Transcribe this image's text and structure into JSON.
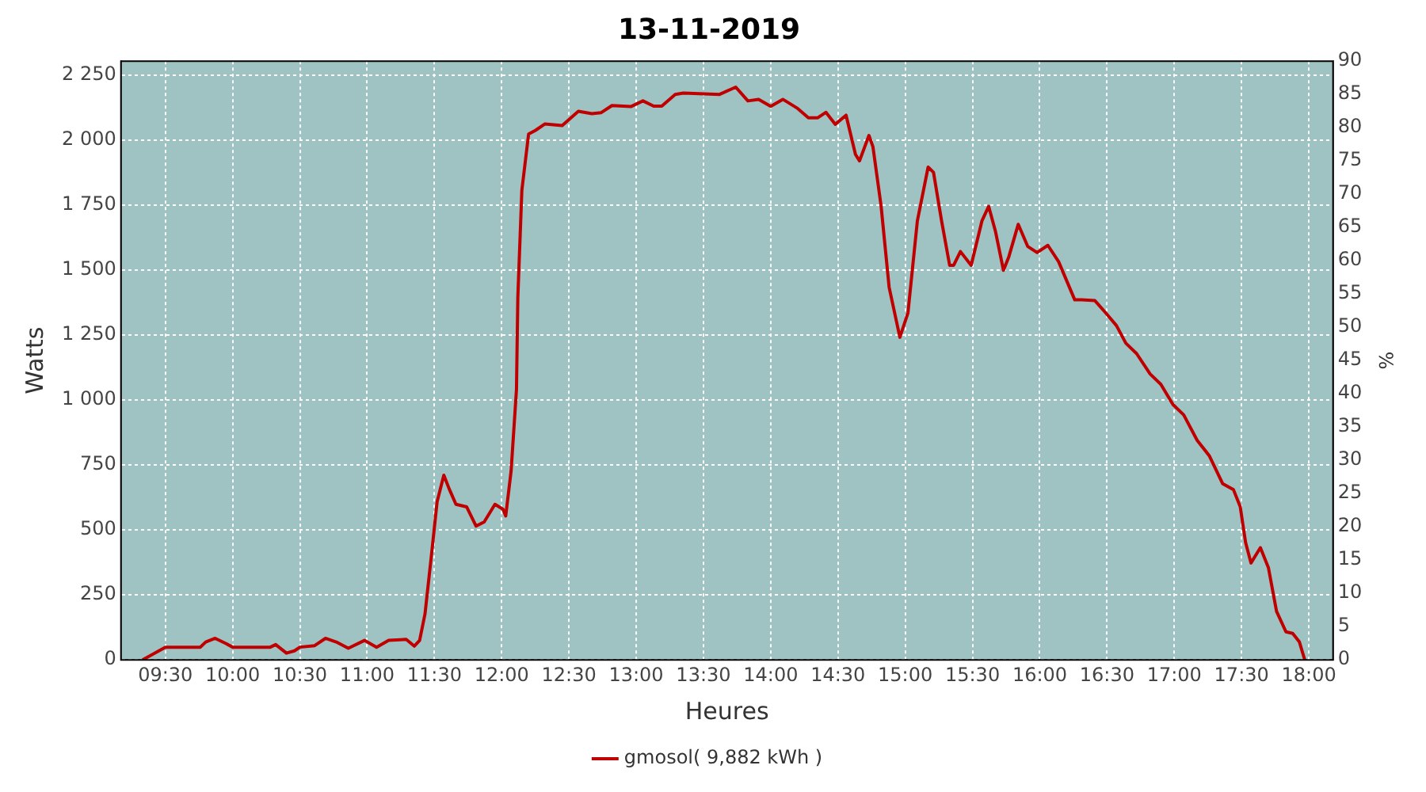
{
  "chart_data": {
    "type": "line",
    "title": "13-11-2019",
    "xlabel": "Heures",
    "ylabel": "Watts",
    "y2label": "%",
    "x": [
      9.33,
      9.5,
      9.76,
      9.8,
      9.87,
      9.95,
      10.0,
      10.28,
      10.32,
      10.4,
      10.46,
      10.5,
      10.61,
      10.69,
      10.77,
      10.86,
      10.98,
      11.07,
      11.16,
      11.29,
      11.35,
      11.39,
      11.43,
      11.48,
      11.52,
      11.57,
      11.61,
      11.66,
      11.74,
      11.81,
      11.87,
      11.95,
      12.01,
      12.03,
      12.07,
      12.11,
      12.12,
      12.15,
      12.2,
      12.25,
      12.32,
      12.45,
      12.57,
      12.67,
      12.74,
      12.82,
      12.96,
      13.05,
      13.13,
      13.19,
      13.29,
      13.35,
      13.62,
      13.74,
      13.83,
      13.91,
      14.0,
      14.09,
      14.2,
      14.28,
      14.35,
      14.41,
      14.48,
      14.56,
      14.63,
      14.66,
      14.73,
      14.76,
      14.82,
      14.88,
      14.96,
      15.02,
      15.09,
      15.17,
      15.21,
      15.27,
      15.33,
      15.36,
      15.41,
      15.49,
      15.57,
      15.62,
      15.67,
      15.73,
      15.77,
      15.84,
      15.91,
      15.98,
      16.06,
      16.14,
      16.26,
      16.31,
      16.41,
      16.49,
      16.57,
      16.64,
      16.72,
      16.82,
      16.9,
      16.99,
      17.07,
      17.17,
      17.26,
      17.36,
      17.44,
      17.49,
      17.53,
      17.57,
      17.64,
      17.7,
      17.76,
      17.83,
      17.88,
      17.93,
      17.97
    ],
    "series": [
      {
        "name": "gmosol( 9,882 kWh )",
        "color": "#c00000",
        "values": [
          0,
          49,
          49,
          69,
          83,
          63,
          49,
          49,
          59,
          26,
          35,
          49,
          55,
          83,
          69,
          45,
          75,
          49,
          75,
          79,
          53,
          75,
          177,
          413,
          609,
          711,
          658,
          599,
          589,
          515,
          531,
          599,
          580,
          554,
          727,
          1041,
          1395,
          1808,
          2024,
          2038,
          2063,
          2057,
          2112,
          2103,
          2107,
          2134,
          2130,
          2152,
          2132,
          2132,
          2177,
          2182,
          2177,
          2205,
          2152,
          2158,
          2131,
          2158,
          2123,
          2087,
          2087,
          2108,
          2062,
          2097,
          1946,
          1921,
          2019,
          1975,
          1749,
          1435,
          1242,
          1336,
          1690,
          1897,
          1877,
          1690,
          1519,
          1519,
          1572,
          1519,
          1690,
          1746,
          1651,
          1500,
          1552,
          1677,
          1592,
          1568,
          1596,
          1533,
          1386,
          1386,
          1383,
          1336,
          1287,
          1219,
          1179,
          1101,
          1061,
          983,
          943,
          845,
          786,
          678,
          655,
          590,
          452,
          373,
          432,
          354,
          187,
          108,
          102,
          69,
          0
        ]
      }
    ],
    "xlim": [
      9.17,
      18.18
    ],
    "xticks": [
      {
        "value": 9.5,
        "label": "09:30"
      },
      {
        "value": 10,
        "label": "10:00"
      },
      {
        "value": 10.5,
        "label": "10:30"
      },
      {
        "value": 11,
        "label": "11:00"
      },
      {
        "value": 11.5,
        "label": "11:30"
      },
      {
        "value": 12,
        "label": "12:00"
      },
      {
        "value": 12.5,
        "label": "12:30"
      },
      {
        "value": 13,
        "label": "13:00"
      },
      {
        "value": 13.5,
        "label": "13:30"
      },
      {
        "value": 14,
        "label": "14:00"
      },
      {
        "value": 14.5,
        "label": "14:30"
      },
      {
        "value": 15,
        "label": "15:00"
      },
      {
        "value": 15.5,
        "label": "15:30"
      },
      {
        "value": 16,
        "label": "16:00"
      },
      {
        "value": 16.5,
        "label": "16:30"
      },
      {
        "value": 17,
        "label": "17:00"
      },
      {
        "value": 17.5,
        "label": "17:30"
      },
      {
        "value": 18,
        "label": "18:00"
      }
    ],
    "ylim": [
      0,
      2305
    ],
    "yticks": [
      0,
      250,
      500,
      750,
      {
        "value": 1000,
        "label": "1 000"
      },
      {
        "value": 1250,
        "label": "1 250"
      },
      {
        "value": 1500,
        "label": "1 500"
      },
      {
        "value": 1750,
        "label": "1 750"
      },
      {
        "value": 2000,
        "label": "2 000"
      },
      {
        "value": 2250,
        "label": "2 250"
      }
    ],
    "y2lim": [
      0,
      90
    ],
    "y2ticks": [
      0,
      5,
      10,
      15,
      20,
      25,
      30,
      35,
      40,
      45,
      50,
      55,
      60,
      65,
      70,
      75,
      80,
      85,
      90
    ],
    "grid": true,
    "legend": "bottom",
    "marker": "none",
    "line_style": "solid"
  }
}
